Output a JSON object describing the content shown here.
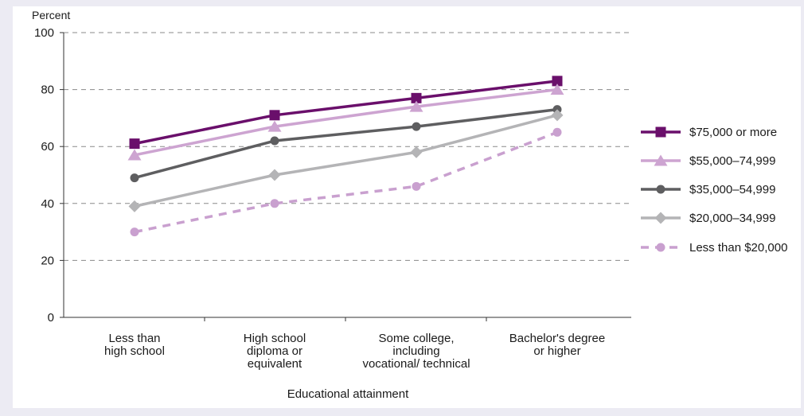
{
  "chart_data": {
    "type": "line",
    "ylabel": "Percent",
    "xlabel": "Educational attainment",
    "ylim": [
      0,
      100
    ],
    "yticks": [
      0,
      20,
      40,
      60,
      80,
      100
    ],
    "grid": "horizontal dashed",
    "legend_position": "right",
    "categories": [
      [
        "Less than",
        "high school"
      ],
      [
        "High school",
        "diploma or",
        "equivalent"
      ],
      [
        "Some college,",
        "including",
        "vocational/ technical"
      ],
      [
        "Bachelor's degree",
        "or higher"
      ]
    ],
    "series": [
      {
        "name": "$75,000 or more",
        "values": [
          61,
          71,
          77,
          83
        ],
        "color": "#6a0f6b",
        "marker": "square",
        "dash": false
      },
      {
        "name": "$55,000–74,999",
        "values": [
          57,
          67,
          74,
          80
        ],
        "color": "#cda4d1",
        "marker": "triangle",
        "dash": false
      },
      {
        "name": "$35,000–54,999",
        "values": [
          49,
          62,
          67,
          73
        ],
        "color": "#5e5e60",
        "marker": "circle",
        "dash": false
      },
      {
        "name": "$20,000–34,999",
        "values": [
          39,
          50,
          58,
          71
        ],
        "color": "#b4b4b6",
        "marker": "diamond",
        "dash": false
      },
      {
        "name": "Less than $20,000",
        "values": [
          30,
          40,
          46,
          65
        ],
        "color": "#c9a0cf",
        "marker": "circle",
        "dash": true
      }
    ]
  }
}
